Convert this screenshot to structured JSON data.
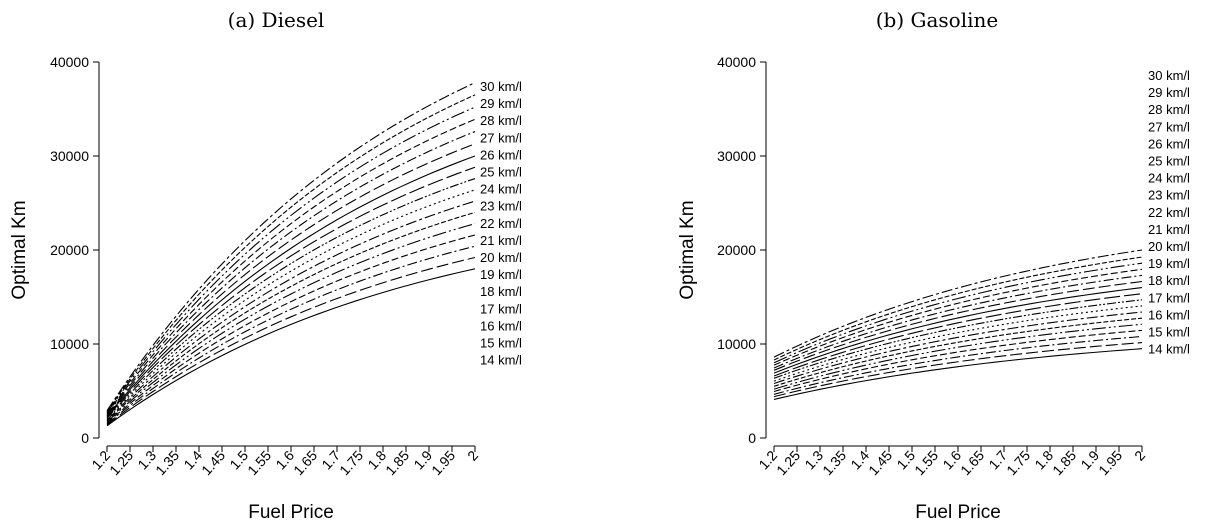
{
  "chart_data": [
    {
      "type": "line",
      "title": "(a) Diesel",
      "xlabel": "Fuel Price",
      "ylabel": "Optimal Km",
      "ylim": [
        0,
        40000
      ],
      "yticks": [
        "0",
        "10000",
        "20000",
        "30000",
        "40000"
      ],
      "x": [
        1.2,
        1.25,
        1.3,
        1.35,
        1.4,
        1.45,
        1.5,
        1.55,
        1.6,
        1.65,
        1.7,
        1.75,
        1.8,
        1.85,
        1.9,
        1.95,
        2
      ],
      "xtick_labels": [
        "1.2",
        "1.25",
        "1.3",
        "1.35",
        "1.4",
        "1.45",
        "1.5",
        "1.55",
        "1.6",
        "1.65",
        "1.7",
        "1.75",
        "1.8",
        "1.85",
        "1.9",
        "1.95",
        "2"
      ],
      "series": [
        {
          "name": "14 km/l",
          "start": 1300,
          "end": 18000
        },
        {
          "name": "15 km/l",
          "start": 1400,
          "end": 19200
        },
        {
          "name": "16 km/l",
          "start": 1500,
          "end": 20400
        },
        {
          "name": "17 km/l",
          "start": 1600,
          "end": 21600
        },
        {
          "name": "18 km/l",
          "start": 1700,
          "end": 22800
        },
        {
          "name": "19 km/l",
          "start": 1800,
          "end": 24000
        },
        {
          "name": "20 km/l",
          "start": 1900,
          "end": 25200
        },
        {
          "name": "21 km/l",
          "start": 2000,
          "end": 26400
        },
        {
          "name": "22 km/l",
          "start": 2100,
          "end": 27600
        },
        {
          "name": "23 km/l",
          "start": 2200,
          "end": 28800
        },
        {
          "name": "24 km/l",
          "start": 2300,
          "end": 30000
        },
        {
          "name": "25 km/l",
          "start": 2400,
          "end": 31300
        },
        {
          "name": "26 km/l",
          "start": 2500,
          "end": 32600
        },
        {
          "name": "27 km/l",
          "start": 2600,
          "end": 33900
        },
        {
          "name": "28 km/l",
          "start": 2700,
          "end": 35200
        },
        {
          "name": "29 km/l",
          "start": 2800,
          "end": 36500
        },
        {
          "name": "30 km/l",
          "start": 2900,
          "end": 37800
        }
      ],
      "labels_top_down": [
        "30 km/l",
        "29 km/l",
        "28 km/l",
        "27 km/l",
        "26 km/l",
        "25 km/l",
        "24 km/l",
        "23 km/l",
        "22 km/l",
        "21 km/l",
        "20 km/l",
        "19 km/l",
        "18 km/l",
        "17 km/l",
        "16 km/l",
        "15 km/l",
        "14 km/l"
      ]
    },
    {
      "type": "line",
      "title": "(b) Gasoline",
      "xlabel": "Fuel Price",
      "ylabel": "Optimal Km",
      "ylim": [
        0,
        40000
      ],
      "yticks": [
        "0",
        "10000",
        "20000",
        "30000",
        "40000"
      ],
      "x": [
        1.2,
        1.25,
        1.3,
        1.35,
        1.4,
        1.45,
        1.5,
        1.55,
        1.6,
        1.65,
        1.7,
        1.75,
        1.8,
        1.85,
        1.9,
        1.95,
        2
      ],
      "xtick_labels": [
        "1.2",
        "1.25",
        "1.3",
        "1.35",
        "1.4",
        "1.45",
        "1.5",
        "1.55",
        "1.6",
        "1.65",
        "1.7",
        "1.75",
        "1.8",
        "1.85",
        "1.9",
        "1.95",
        "2"
      ],
      "series": [
        {
          "name": "14 km/l",
          "start": 4100,
          "end": 9500
        },
        {
          "name": "15 km/l",
          "start": 4400,
          "end": 10150
        },
        {
          "name": "16 km/l",
          "start": 4650,
          "end": 10800
        },
        {
          "name": "17 km/l",
          "start": 4950,
          "end": 11450
        },
        {
          "name": "18 km/l",
          "start": 5200,
          "end": 12100
        },
        {
          "name": "19 km/l",
          "start": 5500,
          "end": 12750
        },
        {
          "name": "20 km/l",
          "start": 5800,
          "end": 13400
        },
        {
          "name": "21 km/l",
          "start": 6050,
          "end": 14050
        },
        {
          "name": "22 km/l",
          "start": 6350,
          "end": 14700
        },
        {
          "name": "23 km/l",
          "start": 6600,
          "end": 15350
        },
        {
          "name": "24 km/l",
          "start": 6900,
          "end": 16000
        },
        {
          "name": "25 km/l",
          "start": 7200,
          "end": 16650
        },
        {
          "name": "26 km/l",
          "start": 7450,
          "end": 17300
        },
        {
          "name": "27 km/l",
          "start": 7750,
          "end": 17950
        },
        {
          "name": "28 km/l",
          "start": 8000,
          "end": 18600
        },
        {
          "name": "29 km/l",
          "start": 8300,
          "end": 19250
        },
        {
          "name": "30 km/l",
          "start": 8600,
          "end": 20000
        }
      ],
      "labels_top_down": [
        "30 km/l",
        "29 km/l",
        "28 km/l",
        "27 km/l",
        "26 km/l",
        "25 km/l",
        "24 km/l",
        "23 km/l",
        "22 km/l",
        "21 km/l",
        "20 km/l",
        "19 km/l",
        "18 km/l",
        "17 km/l",
        "16 km/l",
        "15 km/l",
        "14 km/l"
      ]
    }
  ]
}
